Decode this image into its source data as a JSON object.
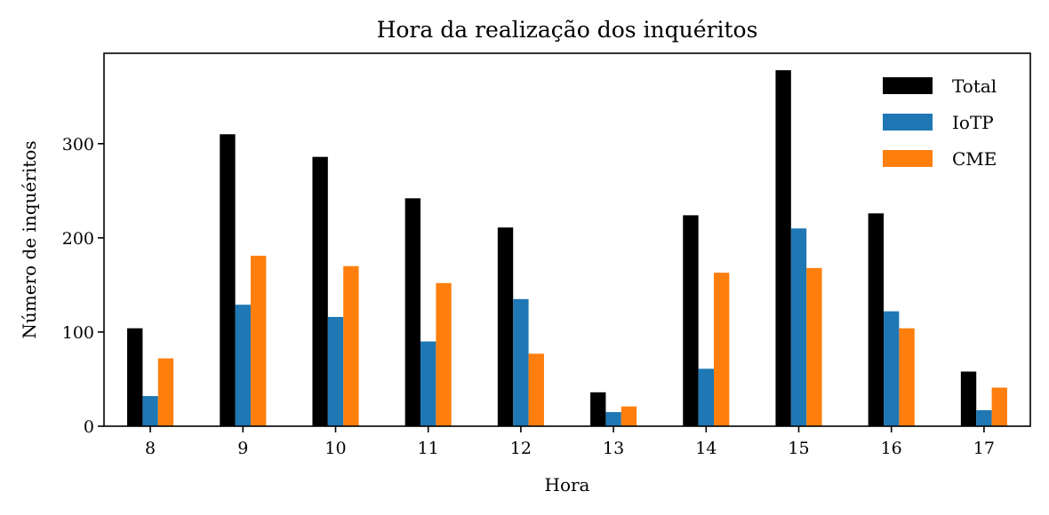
{
  "chart_data": {
    "type": "bar",
    "title": "Hora da realização dos inquéritos",
    "xlabel": "Hora",
    "ylabel": "Número de inquéritos",
    "categories": [
      "8",
      "9",
      "10",
      "11",
      "12",
      "13",
      "14",
      "15",
      "16",
      "17"
    ],
    "series": [
      {
        "name": "Total",
        "color": "#000000",
        "values": [
          104,
          310,
          286,
          242,
          211,
          36,
          224,
          378,
          226,
          58
        ]
      },
      {
        "name": "IoTP",
        "color": "#1f77b4",
        "values": [
          32,
          129,
          116,
          90,
          135,
          15,
          61,
          210,
          122,
          17
        ]
      },
      {
        "name": "CME",
        "color": "#ff7f0e",
        "values": [
          72,
          181,
          170,
          152,
          77,
          21,
          163,
          168,
          104,
          41
        ]
      }
    ],
    "ylim": [
      0,
      396
    ],
    "yticks": [
      0,
      100,
      200,
      300
    ],
    "grid": false,
    "legend_position": "top-right"
  }
}
